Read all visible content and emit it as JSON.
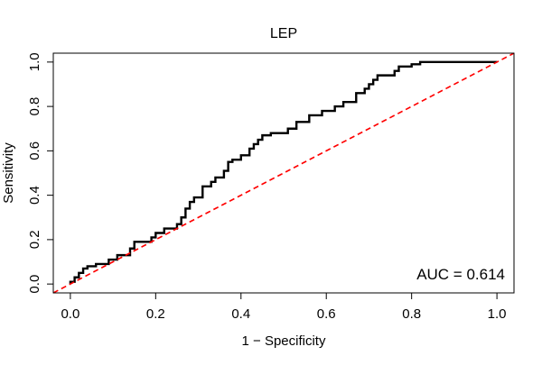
{
  "chart_data": {
    "type": "line",
    "title": "LEP",
    "xlabel": "1 − Specificity",
    "ylabel": "Sensitivity",
    "xlim": [
      -0.04,
      1.04
    ],
    "ylim": [
      -0.04,
      1.04
    ],
    "x_ticks": [
      0.0,
      0.2,
      0.4,
      0.6,
      0.8,
      1.0
    ],
    "x_tick_labels": [
      "0.0",
      "0.2",
      "0.4",
      "0.6",
      "0.8",
      "1.0"
    ],
    "y_ticks": [
      0.0,
      0.2,
      0.4,
      0.6,
      0.8,
      1.0
    ],
    "y_tick_labels": [
      "0.0",
      "0.2",
      "0.4",
      "0.6",
      "0.8",
      "1.0"
    ],
    "grid": false,
    "annotation": "AUC = 0.614",
    "series": [
      {
        "color": "#000000",
        "style": "solid",
        "x": [
          0.0,
          0.0,
          0.01,
          0.01,
          0.02,
          0.02,
          0.03,
          0.03,
          0.04,
          0.04,
          0.06,
          0.06,
          0.09,
          0.09,
          0.11,
          0.11,
          0.14,
          0.14,
          0.15,
          0.15,
          0.19,
          0.19,
          0.2,
          0.2,
          0.22,
          0.22,
          0.25,
          0.25,
          0.26,
          0.26,
          0.27,
          0.27,
          0.28,
          0.28,
          0.29,
          0.29,
          0.31,
          0.31,
          0.33,
          0.33,
          0.34,
          0.34,
          0.36,
          0.36,
          0.37,
          0.37,
          0.38,
          0.38,
          0.4,
          0.4,
          0.42,
          0.42,
          0.43,
          0.43,
          0.44,
          0.44,
          0.45,
          0.45,
          0.47,
          0.47,
          0.51,
          0.51,
          0.53,
          0.53,
          0.56,
          0.56,
          0.59,
          0.59,
          0.62,
          0.62,
          0.64,
          0.64,
          0.67,
          0.67,
          0.69,
          0.69,
          0.7,
          0.7,
          0.71,
          0.71,
          0.72,
          0.72,
          0.76,
          0.76,
          0.77,
          0.77,
          0.8,
          0.8,
          0.82,
          0.82,
          1.0
        ],
        "y": [
          0.0,
          0.01,
          0.01,
          0.03,
          0.03,
          0.05,
          0.05,
          0.07,
          0.07,
          0.08,
          0.08,
          0.09,
          0.09,
          0.11,
          0.11,
          0.13,
          0.13,
          0.16,
          0.16,
          0.19,
          0.19,
          0.21,
          0.21,
          0.23,
          0.23,
          0.25,
          0.25,
          0.27,
          0.27,
          0.3,
          0.3,
          0.34,
          0.34,
          0.37,
          0.37,
          0.39,
          0.39,
          0.44,
          0.44,
          0.46,
          0.46,
          0.48,
          0.48,
          0.51,
          0.51,
          0.55,
          0.55,
          0.56,
          0.56,
          0.58,
          0.58,
          0.61,
          0.61,
          0.63,
          0.63,
          0.65,
          0.65,
          0.67,
          0.67,
          0.68,
          0.68,
          0.7,
          0.7,
          0.73,
          0.73,
          0.76,
          0.76,
          0.78,
          0.78,
          0.8,
          0.8,
          0.82,
          0.82,
          0.86,
          0.86,
          0.88,
          0.88,
          0.9,
          0.9,
          0.92,
          0.92,
          0.94,
          0.94,
          0.96,
          0.96,
          0.98,
          0.98,
          0.99,
          0.99,
          1.0,
          1.0
        ]
      },
      {
        "color": "#ff0000",
        "style": "dashed",
        "x": [
          -0.04,
          1.04
        ],
        "y": [
          -0.04,
          1.04
        ]
      }
    ]
  }
}
